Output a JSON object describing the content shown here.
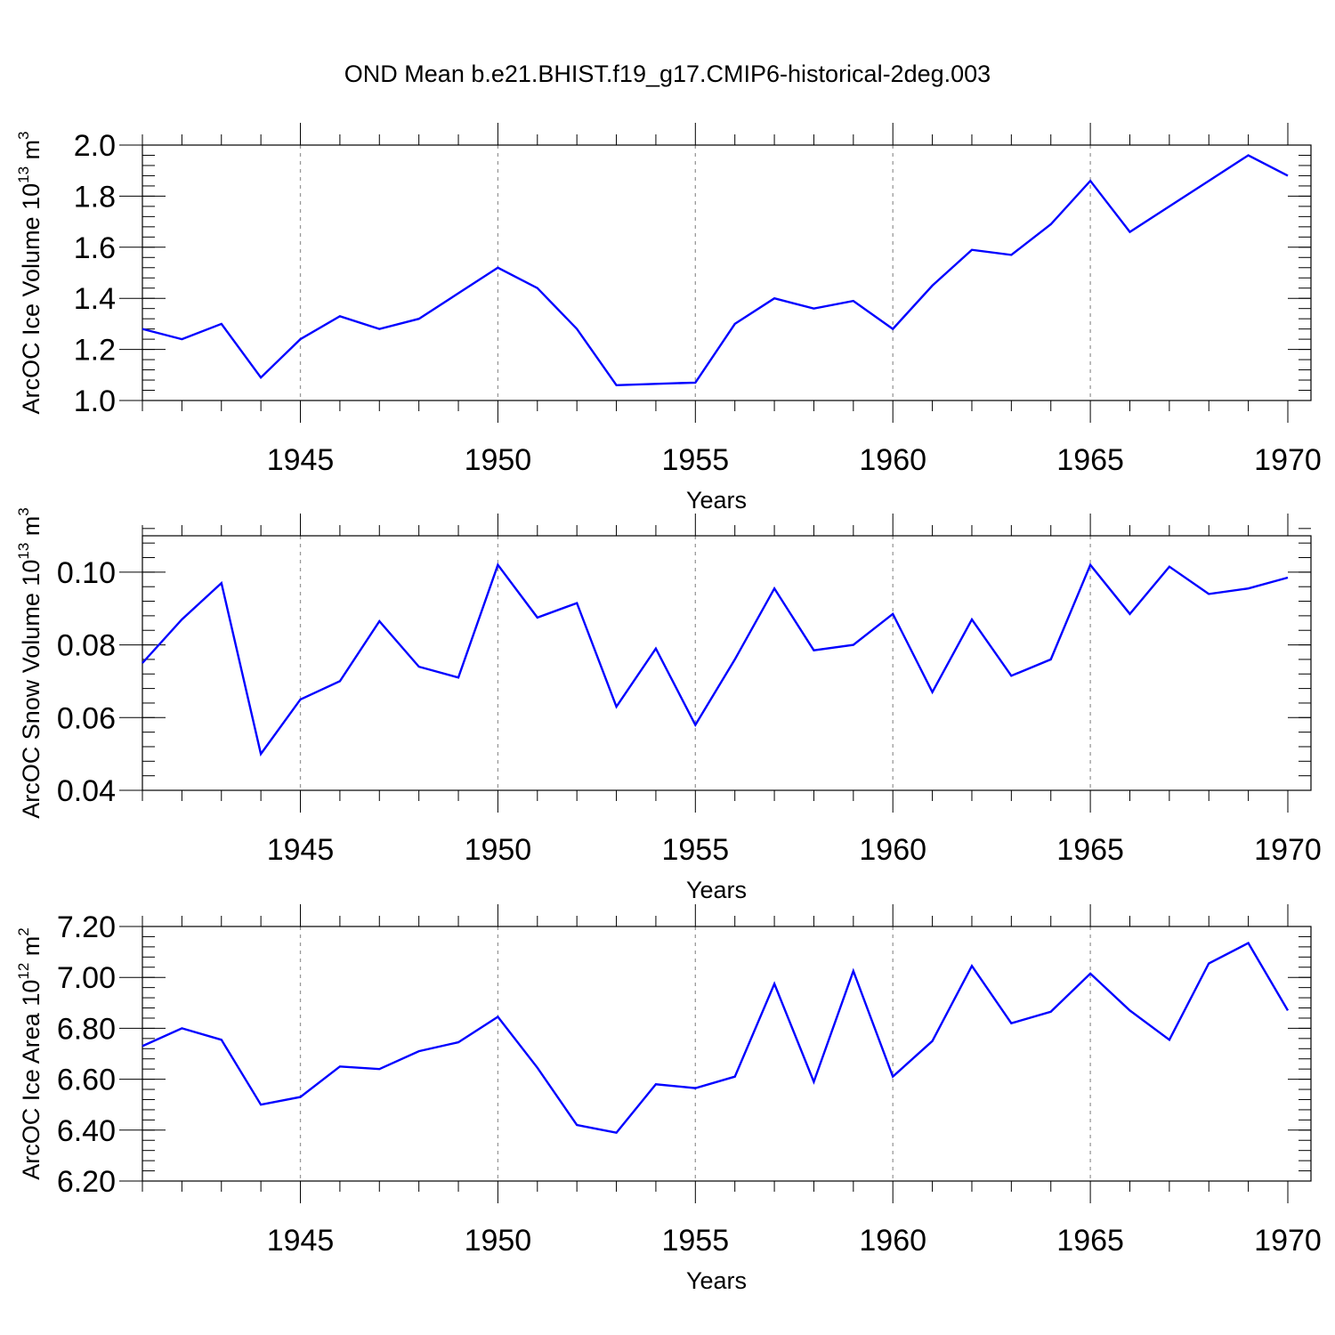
{
  "figure": {
    "title": "OND Mean b.e21.BHIST.f19_g17.CMIP6-historical-2deg.003"
  },
  "chart_data": [
    {
      "type": "line",
      "title": "OND Mean b.e21.BHIST.f19_g17.CMIP6-historical-2deg.003",
      "ylabel": "ArcOC Ice Volume 10",
      "ylabel_exponent": "13",
      "ylabel_unit": "m",
      "ylabel_unit_exponent": "3",
      "xlabel": "Years",
      "xlim": [
        1941,
        1970
      ],
      "ylim": [
        1.0,
        2.0
      ],
      "x_ticks": [
        1945,
        1950,
        1955,
        1960,
        1965,
        1970
      ],
      "x_tick_labels": [
        "1945",
        "1950",
        "1955",
        "1960",
        "1965",
        "1970"
      ],
      "y_ticks": [
        1.0,
        1.2,
        1.4,
        1.6,
        1.8,
        2.0
      ],
      "y_tick_labels": [
        "1.0",
        "1.2",
        "1.4",
        "1.6",
        "1.8",
        "2.0"
      ],
      "y_minor_step": 0.04,
      "grid": "vertical dashed at major x ticks",
      "line_color": "#0000ff",
      "x": [
        1941,
        1942,
        1943,
        1944,
        1945,
        1946,
        1947,
        1948,
        1949,
        1950,
        1951,
        1952,
        1953,
        1954,
        1955,
        1956,
        1957,
        1958,
        1959,
        1960,
        1961,
        1962,
        1963,
        1964,
        1965,
        1966,
        1967,
        1968,
        1969,
        1970
      ],
      "values": [
        1.28,
        1.24,
        1.3,
        1.09,
        1.24,
        1.33,
        1.28,
        1.32,
        1.42,
        1.52,
        1.44,
        1.28,
        1.06,
        1.065,
        1.07,
        1.3,
        1.4,
        1.36,
        1.39,
        1.28,
        1.45,
        1.59,
        1.57,
        1.69,
        1.86,
        1.66,
        1.76,
        1.86,
        1.96,
        1.88
      ]
    },
    {
      "type": "line",
      "ylabel": "ArcOC Snow Volume 10",
      "ylabel_exponent": "13",
      "ylabel_unit": "m",
      "ylabel_unit_exponent": "3",
      "xlabel": "Years",
      "xlim": [
        1941,
        1970
      ],
      "ylim": [
        0.04,
        0.11
      ],
      "x_ticks": [
        1945,
        1950,
        1955,
        1960,
        1965,
        1970
      ],
      "x_tick_labels": [
        "1945",
        "1950",
        "1955",
        "1960",
        "1965",
        "1970"
      ],
      "y_ticks": [
        0.04,
        0.06,
        0.08,
        0.1
      ],
      "y_tick_labels": [
        "0.04",
        "0.06",
        "0.08",
        "0.10"
      ],
      "y_minor_step": 0.004,
      "grid": "vertical dashed at major x ticks",
      "line_color": "#0000ff",
      "x": [
        1941,
        1942,
        1943,
        1944,
        1945,
        1946,
        1947,
        1948,
        1949,
        1950,
        1951,
        1952,
        1953,
        1954,
        1955,
        1956,
        1957,
        1958,
        1959,
        1960,
        1961,
        1962,
        1963,
        1964,
        1965,
        1966,
        1967,
        1968,
        1969,
        1970
      ],
      "values": [
        0.075,
        0.087,
        0.097,
        0.05,
        0.065,
        0.07,
        0.0865,
        0.074,
        0.071,
        0.102,
        0.0875,
        0.0915,
        0.063,
        0.079,
        0.058,
        0.076,
        0.0955,
        0.0785,
        0.08,
        0.0885,
        0.067,
        0.087,
        0.0715,
        0.076,
        0.102,
        0.0885,
        0.1015,
        0.094,
        0.0955,
        0.0985
      ]
    },
    {
      "type": "line",
      "ylabel": "ArcOC Ice Area 10",
      "ylabel_exponent": "12",
      "ylabel_unit": "m",
      "ylabel_unit_exponent": "2",
      "xlabel": "Years",
      "xlim": [
        1941,
        1970
      ],
      "ylim": [
        6.2,
        7.2
      ],
      "x_ticks": [
        1945,
        1950,
        1955,
        1960,
        1965,
        1970
      ],
      "x_tick_labels": [
        "1945",
        "1950",
        "1955",
        "1960",
        "1965",
        "1970"
      ],
      "y_ticks": [
        6.2,
        6.4,
        6.6,
        6.8,
        7.0,
        7.2
      ],
      "y_tick_labels": [
        "6.20",
        "6.40",
        "6.60",
        "6.80",
        "7.00",
        "7.20"
      ],
      "y_minor_step": 0.04,
      "grid": "vertical dashed at major x ticks",
      "line_color": "#0000ff",
      "x": [
        1941,
        1942,
        1943,
        1944,
        1945,
        1946,
        1947,
        1948,
        1949,
        1950,
        1951,
        1952,
        1953,
        1954,
        1955,
        1956,
        1957,
        1958,
        1959,
        1960,
        1961,
        1962,
        1963,
        1964,
        1965,
        1966,
        1967,
        1968,
        1969,
        1970
      ],
      "values": [
        6.73,
        6.8,
        6.755,
        6.5,
        6.53,
        6.65,
        6.64,
        6.71,
        6.745,
        6.845,
        6.645,
        6.42,
        6.39,
        6.58,
        6.565,
        6.61,
        6.975,
        6.59,
        7.025,
        6.61,
        6.75,
        7.045,
        6.82,
        6.865,
        7.015,
        6.87,
        6.755,
        7.055,
        7.135,
        6.87
      ]
    }
  ]
}
